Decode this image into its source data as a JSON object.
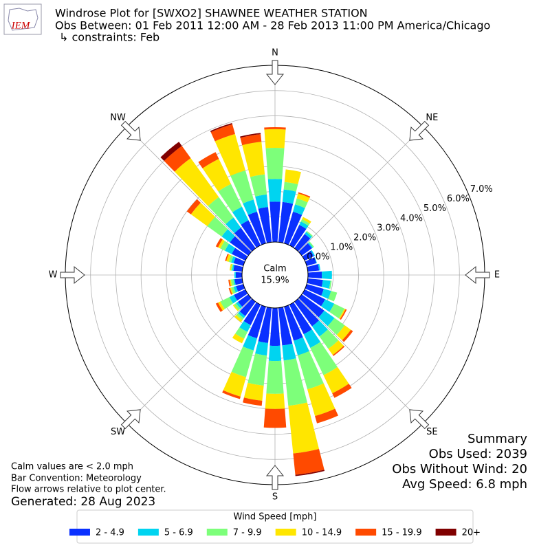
{
  "chart_data": {
    "type": "windrose",
    "logo": "IEM",
    "title": "Windrose Plot for [SWXO2] SHAWNEE WEATHER STATION",
    "subtitle": "Obs Between: 01 Feb 2011 12:00 AM - 28 Feb 2013 11:00 PM America/Chicago",
    "constraints": "↳ constraints: Feb",
    "x": [
      0,
      10,
      20,
      30,
      40,
      50,
      60,
      70,
      80,
      90,
      100,
      110,
      120,
      130,
      140,
      150,
      160,
      170,
      180,
      190,
      200,
      210,
      220,
      230,
      240,
      250,
      260,
      270,
      280,
      290,
      300,
      310,
      320,
      330,
      340,
      350
    ],
    "xlim": [
      0,
      360
    ],
    "xticks": [
      {
        "value": 0,
        "label": "N"
      },
      {
        "value": 45,
        "label": "NE"
      },
      {
        "value": 90,
        "label": "E"
      },
      {
        "value": 135,
        "label": "SE"
      },
      {
        "value": 180,
        "label": "S"
      },
      {
        "value": 225,
        "label": "SW"
      },
      {
        "value": 270,
        "label": "W"
      },
      {
        "value": 315,
        "label": "NW"
      }
    ],
    "ylim": [
      0,
      7
    ],
    "yticks": [
      {
        "value": 0,
        "label": "0.0%"
      },
      {
        "value": 1,
        "label": "1.0%"
      },
      {
        "value": 2,
        "label": "2.0%"
      },
      {
        "value": 3,
        "label": "3.0%"
      },
      {
        "value": 4,
        "label": "4.0%"
      },
      {
        "value": 5,
        "label": "5.0%"
      },
      {
        "value": 6,
        "label": "6.0%"
      },
      {
        "value": 7,
        "label": "7.0%"
      }
    ],
    "grid": true,
    "calm": {
      "label": "Calm",
      "value": 15.9,
      "value_label": "15.9%"
    },
    "legend_title": "Wind Speed [mph]",
    "series": [
      {
        "name": "2 - 4.9",
        "color": "#0a30ff",
        "values": [
          1.6,
          1.6,
          1.3,
          0.9,
          0.7,
          0.5,
          0.4,
          0.4,
          0.45,
          0.55,
          0.6,
          0.7,
          0.9,
          1.1,
          1.2,
          1.3,
          1.4,
          1.5,
          1.5,
          1.4,
          1.3,
          0.9,
          0.7,
          0.5,
          0.5,
          0.3,
          0.3,
          0.25,
          0.35,
          0.4,
          0.6,
          0.9,
          1.0,
          1.1,
          1.3,
          1.4
        ]
      },
      {
        "name": "5 - 6.9",
        "color": "#00d4f0",
        "values": [
          0.9,
          0.5,
          0.3,
          0.15,
          0.1,
          0.05,
          0.05,
          0.02,
          0.05,
          0.4,
          0.3,
          0.3,
          0.4,
          0.5,
          0.5,
          0.6,
          0.6,
          0.6,
          0.6,
          0.5,
          0.5,
          0.3,
          0.1,
          0.1,
          0.2,
          0.1,
          0.05,
          0.05,
          0.05,
          0.1,
          0.3,
          0.4,
          0.5,
          0.6,
          0.5,
          0.5
        ]
      },
      {
        "name": "7 - 9.9",
        "color": "#7dff7a",
        "values": [
          1.23,
          0.3,
          0.25,
          0.1,
          0.05,
          0.05,
          0,
          0,
          0,
          0,
          0.05,
          0.25,
          0.45,
          0.5,
          0.6,
          1.2,
          1.4,
          1.8,
          1.3,
          1.2,
          1.1,
          0.3,
          0.1,
          0.1,
          0.4,
          0.1,
          0.1,
          0,
          0.05,
          0.1,
          0.2,
          0.7,
          1.0,
          1.0,
          1.2,
          0.8
        ]
      },
      {
        "name": "10 - 14.9",
        "color": "#ffe600",
        "values": [
          0.74,
          0.5,
          0.2,
          0.1,
          0,
          0,
          0,
          0,
          0,
          0,
          0,
          0,
          0.05,
          0.3,
          0.3,
          0.8,
          1.1,
          1.9,
          0.6,
          0.6,
          0.8,
          0.2,
          0.1,
          0.05,
          0.1,
          0.05,
          0.05,
          0,
          0.05,
          0.1,
          0.1,
          0.8,
          1.9,
          1.1,
          1.5,
          1.3
        ]
      },
      {
        "name": "15 - 19.9",
        "color": "#ff4a00",
        "values": [
          0.08,
          0,
          0.05,
          0,
          0,
          0,
          0,
          0,
          0,
          0,
          0,
          0,
          0.05,
          0.1,
          0.05,
          0.2,
          0.3,
          0.85,
          0.75,
          0.2,
          0.1,
          0,
          0,
          0,
          0.1,
          0.05,
          0.05,
          0,
          0,
          0.05,
          0.1,
          0.2,
          0.6,
          0.3,
          0.4,
          0.3
        ]
      },
      {
        "name": "20+",
        "color": "#800000",
        "values": [
          0,
          0,
          0,
          0,
          0,
          0,
          0,
          0,
          0,
          0,
          0,
          0,
          0,
          0,
          0,
          0,
          0,
          0.05,
          0,
          0,
          0,
          0,
          0,
          0,
          0,
          0,
          0,
          0,
          0,
          0,
          0,
          0,
          0.2,
          0,
          0.05,
          0.05
        ]
      }
    ],
    "summary": [
      "Summary",
      "Obs Used: 2039",
      "Obs Without Wind: 20",
      "Avg Speed: 6.8 mph"
    ],
    "notes": [
      "Calm values are < 2.0 mph",
      "Bar Convention: Meteorology",
      "Flow arrows relative to plot center."
    ],
    "generated": "Generated: 28 Aug 2023"
  }
}
